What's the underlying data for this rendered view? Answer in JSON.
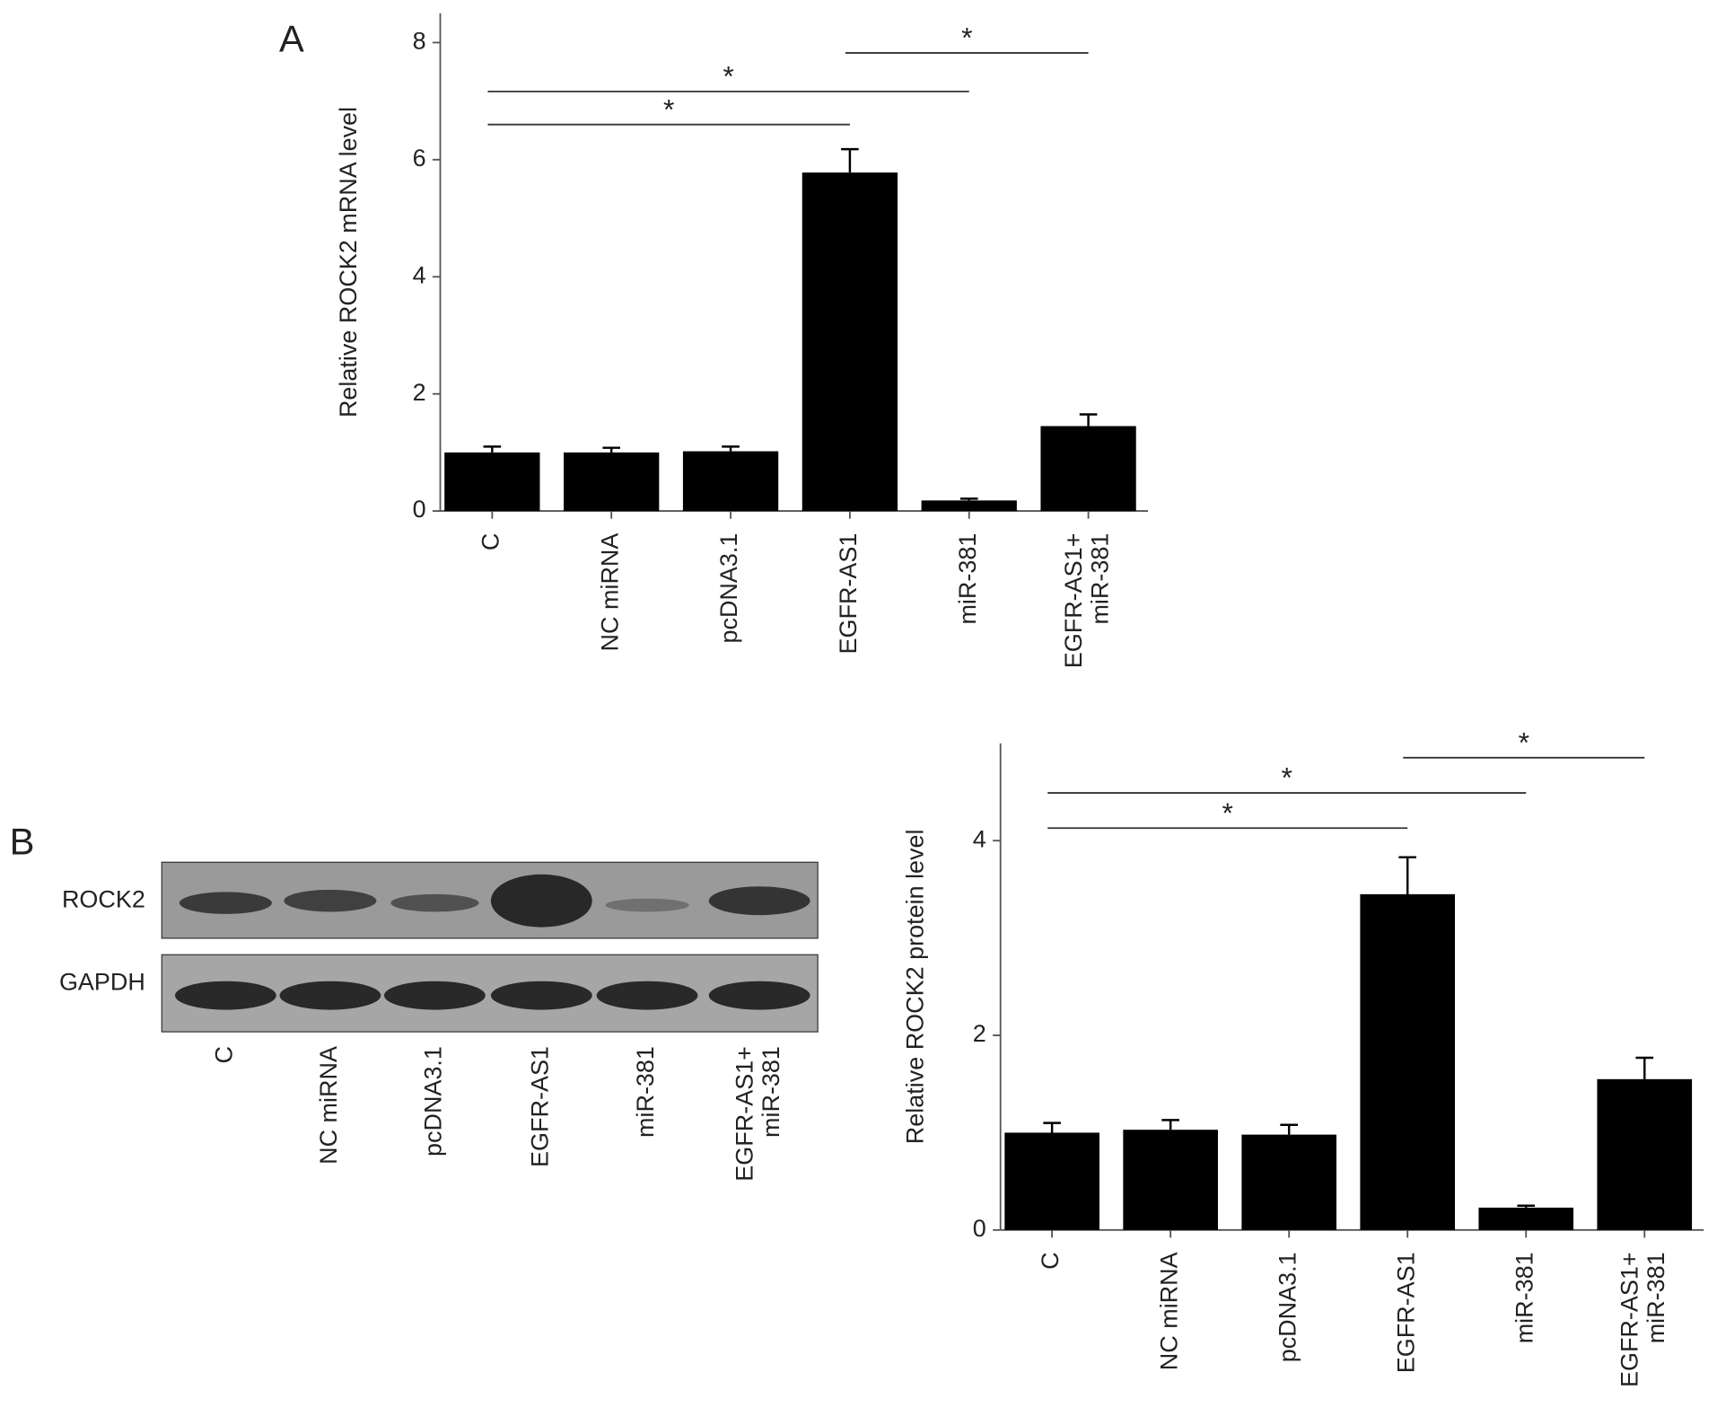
{
  "figure": {
    "panel_labels": [
      "A",
      "B"
    ],
    "blot": {
      "rows": [
        "ROCK2",
        "GAPDH"
      ],
      "lanes": [
        "C",
        "NC miRNA",
        "pcDNA3.1",
        "EGFR-AS1",
        "miR-381",
        "EGFR-AS1+\nmiR-381"
      ]
    }
  },
  "chart_data": [
    {
      "type": "bar",
      "y_label": "Relative ROCK2 mRNA level",
      "categories": [
        "C",
        "NC miRNA",
        "pcDNA3.1",
        "EGFR-AS1",
        "miR-381",
        "EGFR-AS1+\nmiR-381"
      ],
      "values": [
        1.0,
        1.0,
        1.02,
        5.78,
        0.18,
        1.45
      ],
      "errors": [
        0.1,
        0.08,
        0.08,
        0.4,
        0.03,
        0.2
      ],
      "color": "#000000",
      "ylim": [
        0,
        8.5
      ],
      "yticks": [
        0,
        2,
        4,
        6,
        8
      ],
      "brackets": [
        {
          "label": "*",
          "between": [
            "C",
            "EGFR-AS1"
          ]
        },
        {
          "label": "*",
          "between": [
            "C",
            "miR-381"
          ]
        },
        {
          "label": "*",
          "between": [
            "EGFR-AS1",
            "EGFR-AS1+\nmiR-381"
          ]
        }
      ]
    },
    {
      "type": "bar",
      "y_label": "Relative ROCK2 protein level",
      "categories": [
        "C",
        "NC miRNA",
        "pcDNA3.1",
        "EGFR-AS1",
        "miR-381",
        "EGFR-AS1+\nmiR-381"
      ],
      "values": [
        1.0,
        1.03,
        0.98,
        3.45,
        0.23,
        1.55
      ],
      "errors": [
        0.1,
        0.1,
        0.1,
        0.38,
        0.02,
        0.22
      ],
      "color": "#000000",
      "ylim": [
        0,
        5
      ],
      "yticks": [
        0,
        2,
        4
      ],
      "brackets": [
        {
          "label": "*",
          "between": [
            "C",
            "EGFR-AS1"
          ]
        },
        {
          "label": "*",
          "between": [
            "C",
            "miR-381"
          ]
        },
        {
          "label": "*",
          "between": [
            "EGFR-AS1",
            "EGFR-AS1+\nmiR-381"
          ]
        }
      ]
    }
  ]
}
